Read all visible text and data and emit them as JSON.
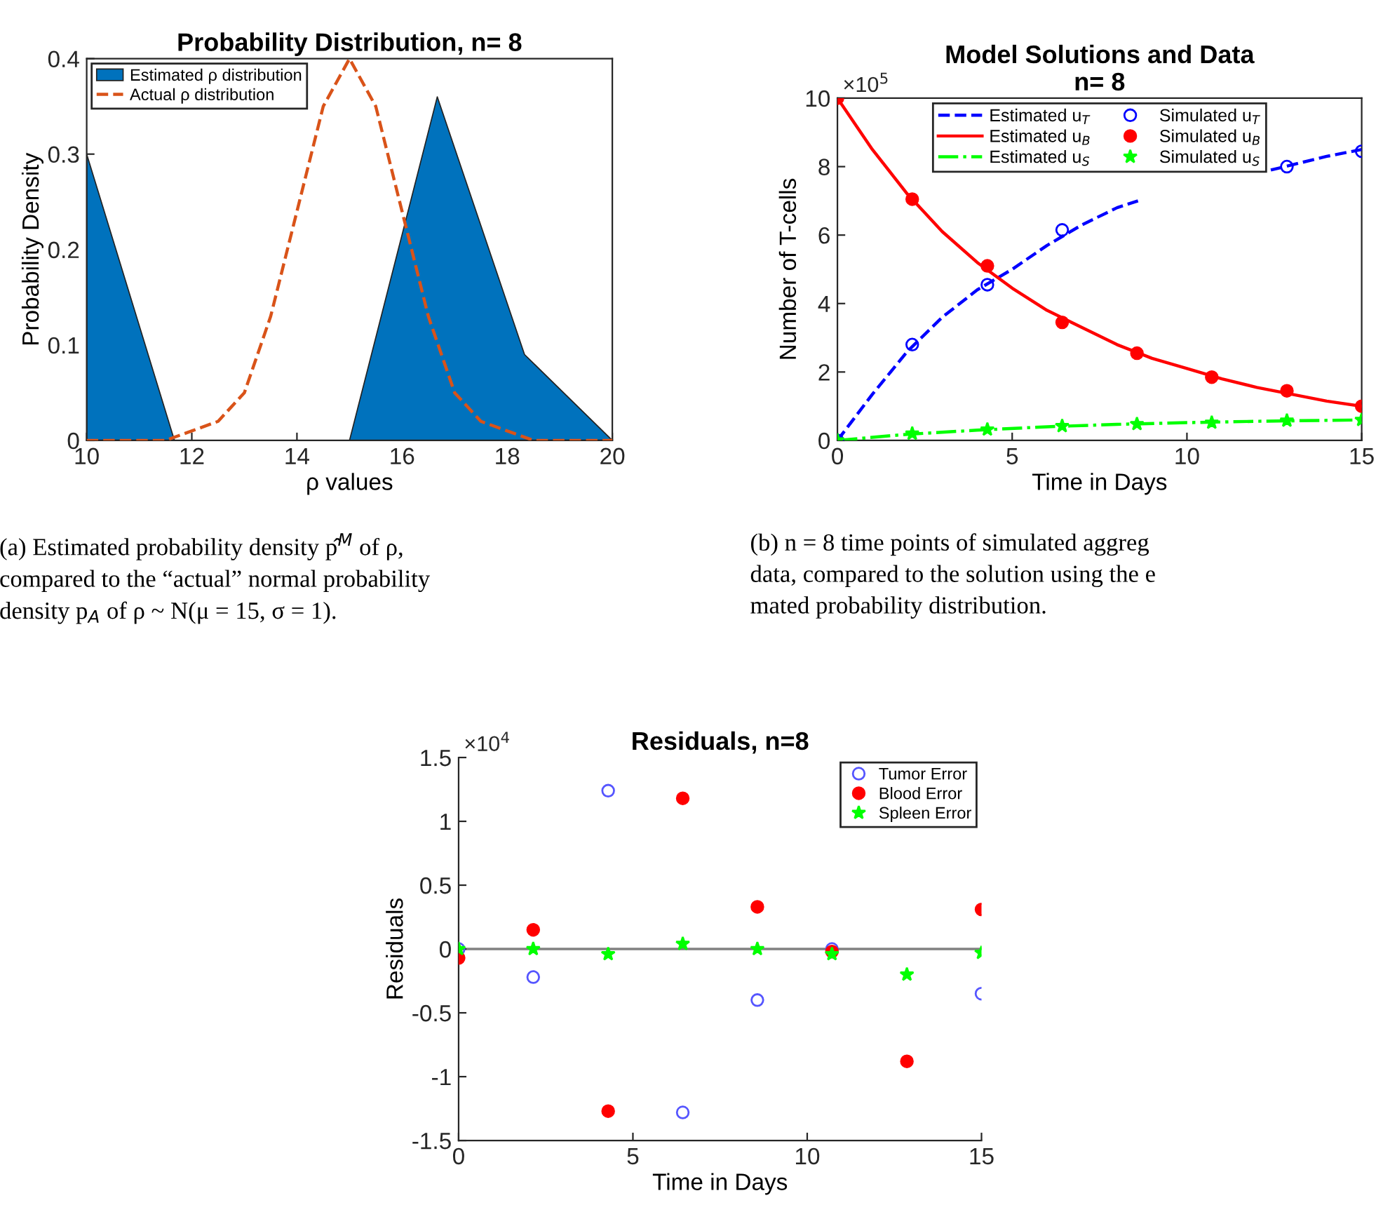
{
  "chart_data": [
    {
      "type": "area",
      "title": "Probability Distribution, n= 8",
      "xlabel": "ρ values",
      "ylabel": "Probability Density",
      "x": [
        10,
        11.67,
        13.33,
        15,
        16.67,
        18.33,
        20
      ],
      "series": [
        {
          "name": "Estimated ρ distribution",
          "type": "area",
          "color": "#0072bd",
          "values": [
            0.3,
            0,
            0,
            0,
            0.36,
            0.09,
            0
          ]
        },
        {
          "name": "Actual ρ distribution",
          "type": "line",
          "line_style": "dashed",
          "color": "#d95319",
          "x": [
            10,
            10.5,
            11,
            11.5,
            12,
            12.5,
            13,
            13.5,
            14,
            14.5,
            15,
            15.5,
            16,
            16.5,
            17,
            17.5,
            18,
            18.5,
            19,
            19.5,
            20
          ],
          "values": [
            0,
            0,
            0,
            0,
            0.01,
            0.02,
            0.05,
            0.13,
            0.24,
            0.35,
            0.4,
            0.35,
            0.24,
            0.13,
            0.05,
            0.02,
            0.01,
            0,
            0,
            0,
            0
          ]
        }
      ],
      "xlim": [
        10,
        20
      ],
      "xticks": [
        10,
        12,
        14,
        16,
        18,
        20
      ],
      "ylim": [
        0,
        0.4
      ],
      "yticks": [
        0,
        0.1,
        0.2,
        0.3,
        0.4
      ],
      "legend": "top left",
      "grid": false,
      "annotations": [
        "(a) Estimated probability density p̂$^{M}$ of ρ,\ncompared to the “actual” normal probability\ndensity p$_{A}$ of ρ ~ N(μ = 15, σ = 1)."
      ]
    },
    {
      "type": "line",
      "title": "Model Solutions and Data\nn= 8",
      "xlabel": "Time in Days",
      "ylabel": "Number of T-cells",
      "series": [
        {
          "name": "Estimated u$_{T}$",
          "type": "line",
          "line_style": "dashed",
          "color": "#0000ff",
          "x": [
            0,
            1,
            2,
            3,
            4,
            5,
            6,
            7,
            8,
            8.6,
            10.5,
            12.4,
            13,
            14,
            15
          ],
          "values": [
            0,
            1.35,
            2.6,
            3.6,
            4.4,
            5.0,
            5.7,
            6.3,
            6.8,
            7.0,
            null,
            7.9,
            8.05,
            8.3,
            8.5
          ]
        },
        {
          "name": "Estimated u$_{B}$",
          "type": "line",
          "line_style": "solid",
          "color": "#ff0000",
          "x": [
            0,
            1,
            2,
            3,
            4,
            5,
            6,
            7,
            8,
            9,
            10,
            11,
            12,
            13,
            14,
            15
          ],
          "values": [
            10,
            8.5,
            7.2,
            6.1,
            5.2,
            4.45,
            3.8,
            3.3,
            2.8,
            2.4,
            2.1,
            1.8,
            1.55,
            1.35,
            1.15,
            1.0
          ]
        },
        {
          "name": "Estimated u$_{S}$",
          "type": "line",
          "line_style": "dashdot",
          "color": "#00ff00",
          "x": [
            0,
            2,
            4,
            6,
            8,
            10,
            12,
            15
          ],
          "values": [
            0,
            0.18,
            0.3,
            0.4,
            0.47,
            0.52,
            0.56,
            0.6
          ]
        },
        {
          "name": "Simulated u$_{T}$",
          "type": "scatter",
          "marker": "circle",
          "color": "#0000ff",
          "x": [
            0,
            2.14,
            4.29,
            6.43,
            8.57,
            10.71,
            12.86,
            15
          ],
          "values": [
            0,
            2.8,
            4.55,
            6.15,
            null,
            null,
            8.0,
            8.45
          ]
        },
        {
          "name": "Simulated u$_{B}$",
          "type": "scatter",
          "marker": "dot",
          "color": "#ff0000",
          "x": [
            0,
            2.14,
            4.29,
            6.43,
            8.57,
            10.71,
            12.86,
            15
          ],
          "values": [
            10,
            7.05,
            5.1,
            3.45,
            2.55,
            1.85,
            1.45,
            1.0
          ]
        },
        {
          "name": "Simulated u$_{S}$",
          "type": "scatter",
          "marker": "star",
          "color": "#00ff00",
          "x": [
            0,
            2.14,
            4.29,
            6.43,
            8.57,
            10.71,
            12.86,
            15
          ],
          "values": [
            0,
            0.2,
            0.32,
            0.42,
            0.48,
            0.52,
            0.58,
            0.6
          ]
        }
      ],
      "xlim": [
        0,
        15
      ],
      "xticks": [
        0,
        5,
        10,
        15
      ],
      "ylim": [
        0,
        10
      ],
      "yticks": [
        0,
        2,
        4,
        6,
        8,
        10
      ],
      "legend": "top",
      "grid": false,
      "annotations": [
        "×10$^{5}$",
        "(b) n = 8 time points of simulated aggreg\ndata, compared to the solution using the e\nmated probability distribution."
      ]
    },
    {
      "type": "scatter",
      "title": "Residuals, n=8",
      "xlabel": "Time in Days",
      "ylabel": "Residuals",
      "x": [
        0,
        2.14,
        4.29,
        6.43,
        8.57,
        10.71,
        12.86,
        15
      ],
      "series": [
        {
          "name": "Tumor Error",
          "marker": "circle",
          "color": "#5555ff",
          "values": [
            0,
            -0.22,
            1.24,
            -1.28,
            -0.4,
            0,
            null,
            -0.35
          ]
        },
        {
          "name": "Blood Error",
          "marker": "dot",
          "color": "#ff0000",
          "values": [
            -0.07,
            0.15,
            -1.27,
            1.18,
            0.33,
            -0.02,
            -0.88,
            0.31
          ]
        },
        {
          "name": "Spleen Error",
          "marker": "star",
          "color": "#00ff00",
          "values": [
            0,
            0,
            -0.04,
            0.04,
            0,
            -0.04,
            -0.2,
            -0.03
          ]
        }
      ],
      "xlim": [
        0,
        15
      ],
      "xticks": [
        0,
        5,
        10,
        15
      ],
      "ylim": [
        -1.5,
        1.5
      ],
      "yticks": [
        -1.5,
        -1,
        -0.5,
        0,
        0.5,
        1,
        1.5
      ],
      "ref_lines": [
        {
          "axis": "y",
          "value": 0,
          "color": "#808080"
        }
      ],
      "legend": "top right",
      "grid": false,
      "annotations": [
        "×10$^{4}$"
      ]
    }
  ]
}
